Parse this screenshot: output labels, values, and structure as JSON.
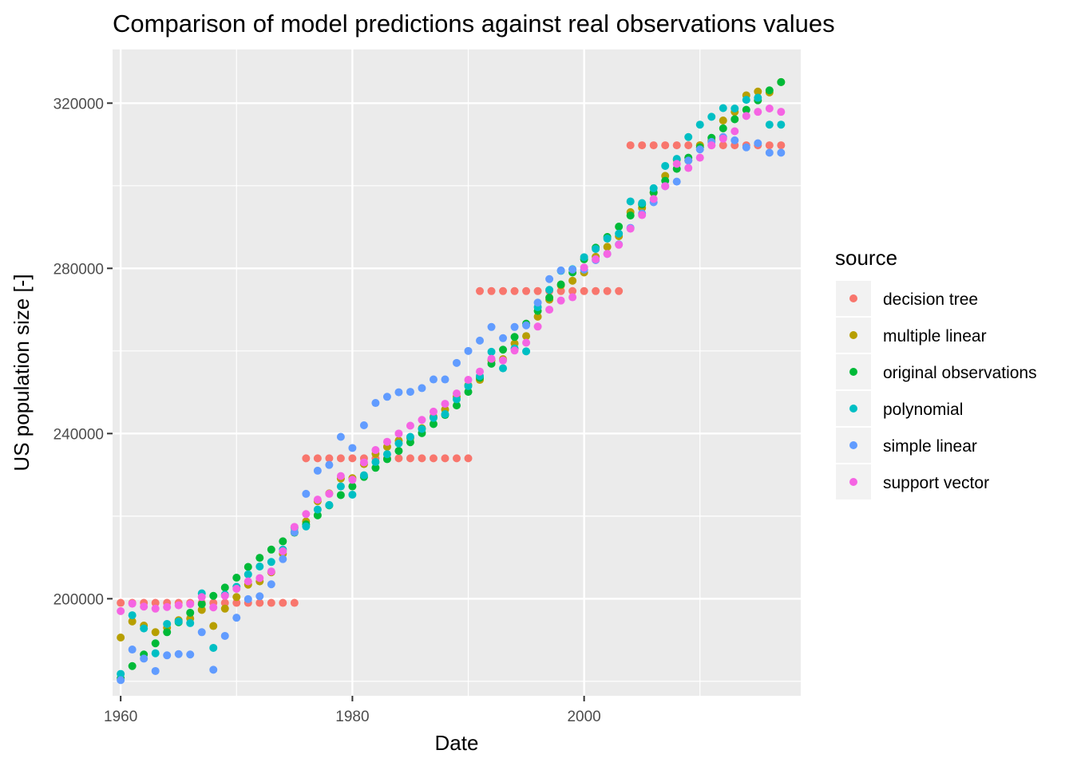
{
  "chart_data": {
    "type": "scatter",
    "title": "Comparison of model predictions against real observations values",
    "xlabel": "Date",
    "ylabel": "US population size [-]",
    "xlim": [
      1959.3,
      2018.7
    ],
    "ylim": [
      176500,
      333000
    ],
    "x_ticks": [
      1960,
      1980,
      2000
    ],
    "x_tick_labels": [
      "1960",
      "1980",
      "2000"
    ],
    "y_ticks": [
      200000,
      240000,
      280000,
      320000
    ],
    "y_tick_labels": [
      "200000",
      "240000",
      "280000",
      "320000"
    ],
    "grid": true,
    "legend_title": "source",
    "legend_position": "right",
    "series": [
      {
        "name": "decision tree",
        "color": "#F8766D",
        "x": [
          1960,
          1961,
          1962,
          1963,
          1964,
          1965,
          1966,
          1967,
          1968,
          1969,
          1970,
          1971,
          1972,
          1973,
          1974,
          1975,
          1976,
          1977,
          1978,
          1979,
          1980,
          1981,
          1982,
          1983,
          1984,
          1985,
          1986,
          1987,
          1988,
          1989,
          1990,
          1991,
          1992,
          1993,
          1994,
          1995,
          1996,
          1997,
          1998,
          1999,
          2000,
          2001,
          2002,
          2003,
          2004,
          2005,
          2006,
          2007,
          2008,
          2009,
          2010,
          2011,
          2012,
          2013,
          2014,
          2015,
          2016,
          2017
        ],
        "y": [
          199000,
          199000,
          199000,
          199000,
          199000,
          199000,
          199000,
          199000,
          199000,
          199000,
          199000,
          199000,
          199000,
          199000,
          199000,
          199000,
          234000,
          234000,
          234000,
          234000,
          234000,
          234000,
          234000,
          234000,
          234000,
          234000,
          234000,
          234000,
          234000,
          234000,
          234000,
          274500,
          274500,
          274500,
          274500,
          274500,
          274500,
          274500,
          274500,
          274500,
          274500,
          274500,
          274500,
          274500,
          309800,
          309800,
          309800,
          309800,
          309800,
          309800,
          309800,
          309800,
          309800,
          309800,
          309800,
          309800,
          309800,
          309800
        ]
      },
      {
        "name": "multiple linear",
        "color": "#B79F00",
        "x": [
          1960,
          1961,
          1962,
          1963,
          1964,
          1965,
          1966,
          1967,
          1968,
          1969,
          1970,
          1971,
          1972,
          1973,
          1974,
          1975,
          1976,
          1977,
          1978,
          1979,
          1980,
          1981,
          1982,
          1983,
          1984,
          1985,
          1986,
          1987,
          1988,
          1989,
          1990,
          1991,
          1992,
          1993,
          1994,
          1995,
          1996,
          1997,
          1998,
          1999,
          2000,
          2001,
          2002,
          2003,
          2004,
          2005,
          2006,
          2007,
          2008,
          2009,
          2010,
          2011,
          2012,
          2013,
          2014,
          2015,
          2016,
          2017
        ],
        "y": [
          190600,
          194500,
          193500,
          191900,
          193000,
          194800,
          195200,
          197300,
          193400,
          197600,
          200400,
          203400,
          204200,
          206400,
          210900,
          216200,
          218700,
          223600,
          225500,
          229100,
          229200,
          232600,
          235100,
          236800,
          238300,
          238900,
          241300,
          244100,
          245800,
          248900,
          251700,
          253000,
          257700,
          258000,
          261800,
          263600,
          268300,
          272400,
          275900,
          277000,
          279000,
          282800,
          285200,
          287800,
          293600,
          294600,
          298300,
          302400,
          306300,
          306100,
          309800,
          310900,
          315800,
          317900,
          321900,
          322800,
          322600,
          325100
        ]
      },
      {
        "name": "original observations",
        "color": "#00BA38",
        "x": [
          1960,
          1961,
          1962,
          1963,
          1964,
          1965,
          1966,
          1967,
          1968,
          1969,
          1970,
          1971,
          1972,
          1973,
          1974,
          1975,
          1976,
          1977,
          1978,
          1979,
          1980,
          1981,
          1982,
          1983,
          1984,
          1985,
          1986,
          1987,
          1988,
          1989,
          1990,
          1991,
          1992,
          1993,
          1994,
          1995,
          1996,
          1997,
          1998,
          1999,
          2000,
          2001,
          2002,
          2003,
          2004,
          2005,
          2006,
          2007,
          2008,
          2009,
          2010,
          2011,
          2012,
          2013,
          2014,
          2015,
          2016,
          2017
        ],
        "y": [
          180700,
          183700,
          186500,
          189200,
          191900,
          194300,
          196600,
          198700,
          200700,
          202700,
          205100,
          207700,
          209900,
          211900,
          213900,
          216000,
          218000,
          220200,
          222600,
          225100,
          227200,
          229500,
          231700,
          233800,
          235800,
          237900,
          240100,
          242300,
          244500,
          246800,
          250100,
          253500,
          256900,
          260300,
          263400,
          266600,
          269700,
          272900,
          276100,
          279000,
          282200,
          285000,
          287600,
          290100,
          292800,
          295500,
          298400,
          301200,
          304100,
          306800,
          309300,
          311600,
          313900,
          316100,
          318400,
          320700,
          323100,
          325100
        ]
      },
      {
        "name": "polynomial",
        "color": "#00BFC4",
        "x": [
          1960,
          1961,
          1962,
          1963,
          1964,
          1965,
          1966,
          1967,
          1968,
          1969,
          1970,
          1971,
          1972,
          1973,
          1974,
          1975,
          1976,
          1977,
          1978,
          1979,
          1980,
          1981,
          1982,
          1983,
          1984,
          1985,
          1986,
          1987,
          1988,
          1989,
          1990,
          1991,
          1992,
          1993,
          1994,
          1995,
          1996,
          1997,
          1998,
          1999,
          2000,
          2001,
          2002,
          2003,
          2004,
          2005,
          2006,
          2007,
          2008,
          2009,
          2010,
          2011,
          2012,
          2013,
          2014,
          2015,
          2016,
          2017
        ],
        "y": [
          181800,
          196000,
          192800,
          186800,
          193900,
          194500,
          194100,
          201300,
          188100,
          201000,
          202900,
          205900,
          207800,
          208900,
          211900,
          217200,
          217500,
          221600,
          222700,
          227200,
          225200,
          229900,
          233100,
          235000,
          237600,
          239200,
          241100,
          243800,
          244700,
          248300,
          251500,
          253900,
          259800,
          255800,
          260600,
          259900,
          270600,
          274800,
          279400,
          279800,
          282700,
          284700,
          287200,
          288400,
          296200,
          295800,
          299400,
          304800,
          306500,
          311800,
          314800,
          316700,
          318800,
          318700,
          320800,
          321300,
          314800,
          314800
        ]
      },
      {
        "name": "simple linear",
        "color": "#619CFF",
        "x": [
          1960,
          1961,
          1962,
          1963,
          1964,
          1965,
          1966,
          1967,
          1968,
          1969,
          1970,
          1971,
          1972,
          1973,
          1974,
          1975,
          1976,
          1977,
          1978,
          1979,
          1980,
          1981,
          1982,
          1983,
          1984,
          1985,
          1986,
          1987,
          1988,
          1989,
          1990,
          1991,
          1992,
          1993,
          1994,
          1995,
          1996,
          1997,
          1998,
          1999,
          2000,
          2001,
          2002,
          2003,
          2004,
          2005,
          2006,
          2007,
          2008,
          2009,
          2010,
          2011,
          2012,
          2013,
          2014,
          2015,
          2016,
          2017
        ],
        "y": [
          180300,
          187700,
          185500,
          182500,
          186300,
          186600,
          186500,
          191900,
          182800,
          191000,
          195400,
          199900,
          200600,
          203500,
          209600,
          216100,
          225400,
          231000,
          232400,
          239200,
          236500,
          242000,
          247400,
          248900,
          250000,
          250100,
          251000,
          253100,
          253100,
          257100,
          260000,
          262500,
          265800,
          263100,
          265800,
          266200,
          271700,
          277400,
          279500,
          279700,
          279700,
          282000,
          283500,
          285800,
          289800,
          293300,
          296000,
          299900,
          301000,
          306100,
          308800,
          310600,
          311800,
          311000,
          309300,
          310300,
          308000,
          308000
        ]
      },
      {
        "name": "support vector",
        "color": "#F564E3",
        "x": [
          1960,
          1961,
          1962,
          1963,
          1964,
          1965,
          1966,
          1967,
          1968,
          1969,
          1970,
          1971,
          1972,
          1973,
          1974,
          1975,
          1976,
          1977,
          1978,
          1979,
          1980,
          1981,
          1982,
          1983,
          1984,
          1985,
          1986,
          1987,
          1988,
          1989,
          1990,
          1991,
          1992,
          1993,
          1994,
          1995,
          1996,
          1997,
          1998,
          1999,
          2000,
          2001,
          2002,
          2003,
          2004,
          2005,
          2006,
          2007,
          2008,
          2009,
          2010,
          2011,
          2012,
          2013,
          2014,
          2015,
          2016,
          2017
        ],
        "y": [
          197000,
          198800,
          198100,
          197600,
          198000,
          198400,
          198700,
          200400,
          197900,
          200700,
          202400,
          204200,
          205000,
          206600,
          211500,
          217400,
          220500,
          224000,
          225400,
          229700,
          228800,
          233000,
          236000,
          238000,
          240000,
          241900,
          243300,
          245300,
          247200,
          249700,
          253000,
          255000,
          258100,
          257700,
          260100,
          262000,
          265900,
          270000,
          272200,
          273000,
          280200,
          282200,
          283500,
          285700,
          289600,
          292900,
          296800,
          299900,
          305300,
          304300,
          306800,
          309800,
          311400,
          313200,
          316900,
          317900,
          318700,
          317900
        ]
      }
    ]
  }
}
